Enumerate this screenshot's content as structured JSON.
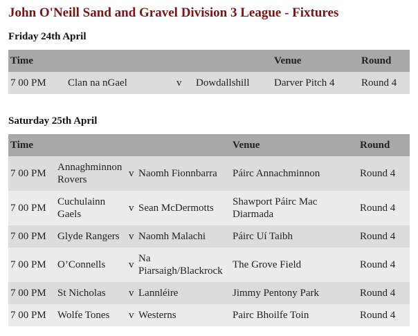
{
  "title": "John O'Neill Sand and Gravel Division 3 League - Fixtures",
  "headers": {
    "time": "Time",
    "venue": "Venue",
    "round": "Round"
  },
  "days": [
    {
      "date": "Friday 24th April",
      "fixtures": [
        {
          "time": "7 00 PM",
          "home": "Clan na nGael",
          "vs": "v",
          "away": "Dowdallshill",
          "venue": "Darver Pitch 4",
          "round": "Round 4"
        }
      ]
    },
    {
      "date": "Saturday 25th April",
      "fixtures": [
        {
          "time": "7 00 PM",
          "home": "Annaghminnon Rovers",
          "vs": "v",
          "away": "Naomh Fionnbarra",
          "venue": "Páirc Annachminnon",
          "round": "Round 4"
        },
        {
          "time": "7 00 PM",
          "home": "Cuchulainn Gaels",
          "vs": "v",
          "away": "Sean McDermotts",
          "venue": "Shawport Páirc Mac Diarmada",
          "round": "Round 4"
        },
        {
          "time": "7 00 PM",
          "home": "Glyde Rangers",
          "vs": "v",
          "away": "Naomh Malachi",
          "venue": "Páirc Uí Taibh",
          "round": "Round 4"
        },
        {
          "time": "7 00 PM",
          "home": "O’Connells",
          "vs": "v",
          "away": "Na Piarsaigh/Blackrock",
          "venue": "The Grove Field",
          "round": "Round 4"
        },
        {
          "time": "7 00 PM",
          "home": "St Nicholas",
          "vs": "v",
          "away": "Lannléire",
          "venue": "Jimmy Pentony Park",
          "round": "Round 4"
        },
        {
          "time": "7 00 PM",
          "home": "Wolfe Tones",
          "vs": "v",
          "away": "Westerns",
          "venue": "Pairc Bhoilfe Toin",
          "round": "Round 4"
        }
      ]
    }
  ]
}
